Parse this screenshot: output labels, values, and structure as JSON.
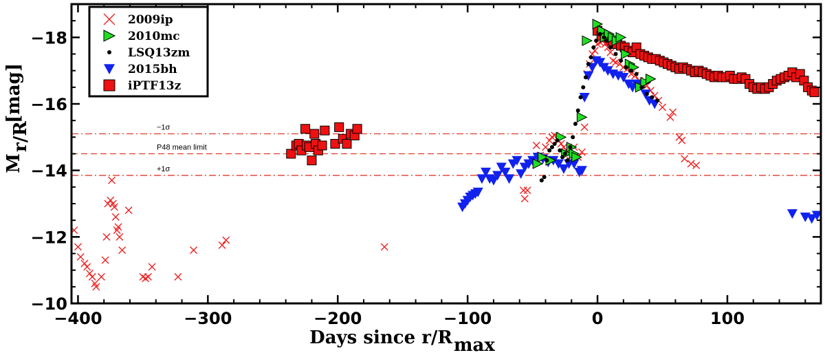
{
  "chart_data": {
    "type": "scatter",
    "xlabel_main": "Days since r/R",
    "xlabel_sub": "max",
    "ylabel_main": "M",
    "ylabel_sub": "r/R",
    "ylabel_unit": "[mag]",
    "xlim": [
      -405,
      172
    ],
    "ylim": [
      -10,
      -19
    ],
    "x_ticks": [
      -400,
      -300,
      -200,
      -100,
      0,
      100
    ],
    "x_tick_labels": [
      "−400",
      "−300",
      "−200",
      "−100",
      "0",
      "100"
    ],
    "y_ticks": [
      -10,
      -12,
      -14,
      -16,
      -18
    ],
    "y_tick_labels": [
      "−10",
      "−12",
      "−14",
      "−16",
      "−18"
    ],
    "legend_position": "top-left",
    "reference_lines": [
      {
        "y": -15.1,
        "label": "−1σ",
        "style": "dash-dot"
      },
      {
        "y": -14.5,
        "label": "P48 mean limit",
        "style": "dashed"
      },
      {
        "y": -13.85,
        "label": "+1σ",
        "style": "dash-dot"
      }
    ],
    "series": [
      {
        "name": "2009ip",
        "marker": "x",
        "color": "#ee2222",
        "points": [
          [
            -403,
            -12.2
          ],
          [
            -400,
            -11.7
          ],
          [
            -398,
            -11.4
          ],
          [
            -395,
            -11.2
          ],
          [
            -393,
            -11.1
          ],
          [
            -391,
            -10.9
          ],
          [
            -389,
            -10.8
          ],
          [
            -387,
            -10.6
          ],
          [
            -386,
            -10.5
          ],
          [
            -382,
            -10.8
          ],
          [
            -379,
            -11.3
          ],
          [
            -378,
            -12.0
          ],
          [
            -377,
            -13.0
          ],
          [
            -375,
            -13.1
          ],
          [
            -374,
            -13.7
          ],
          [
            -373,
            -13.0
          ],
          [
            -372,
            -12.9
          ],
          [
            -371,
            -12.6
          ],
          [
            -370,
            -12.2
          ],
          [
            -369,
            -12.3
          ],
          [
            -368,
            -12.0
          ],
          [
            -366,
            -11.6
          ],
          [
            -361,
            -12.8
          ],
          [
            -350,
            -10.8
          ],
          [
            -348,
            -10.75
          ],
          [
            -346,
            -10.8
          ],
          [
            -343,
            -11.1
          ],
          [
            -323,
            -10.8
          ],
          [
            -311,
            -11.6
          ],
          [
            -289,
            -11.75
          ],
          [
            -286,
            -11.9
          ],
          [
            -164,
            -11.7
          ],
          [
            -57,
            -13.4
          ],
          [
            -56,
            -13.15
          ],
          [
            -54,
            -13.4
          ],
          [
            -47,
            -14.75
          ],
          [
            -44,
            -14.45
          ],
          [
            -40,
            -14.7
          ],
          [
            -37,
            -14.9
          ],
          [
            -35,
            -15.0
          ],
          [
            -33,
            -15.05
          ],
          [
            -30,
            -14.9
          ],
          [
            -28,
            -14.8
          ],
          [
            -26,
            -14.7
          ],
          [
            -24,
            -14.6
          ],
          [
            -21,
            -14.3
          ],
          [
            -18,
            -14.7
          ],
          [
            -15,
            -14.4
          ],
          [
            -12,
            -14.55
          ],
          [
            -10,
            -15.3
          ],
          [
            -8,
            -16.9
          ],
          [
            -6,
            -17.2
          ],
          [
            -4,
            -17.5
          ],
          [
            -2,
            -17.6
          ],
          [
            0,
            -17.8
          ],
          [
            2,
            -17.85
          ],
          [
            4,
            -17.9
          ],
          [
            6,
            -17.8
          ],
          [
            8,
            -17.7
          ],
          [
            10,
            -17.55
          ],
          [
            12,
            -17.3
          ],
          [
            14,
            -17.25
          ],
          [
            17,
            -17.2
          ],
          [
            20,
            -17.1
          ],
          [
            23,
            -17.05
          ],
          [
            26,
            -16.9
          ],
          [
            29,
            -16.85
          ],
          [
            32,
            -16.7
          ],
          [
            35,
            -16.6
          ],
          [
            38,
            -16.55
          ],
          [
            41,
            -16.4
          ],
          [
            44,
            -16.25
          ],
          [
            47,
            -16.1
          ],
          [
            50,
            -15.9
          ],
          [
            56,
            -15.6
          ],
          [
            58,
            -15.75
          ],
          [
            63,
            -15.0
          ],
          [
            65,
            -14.9
          ],
          [
            67,
            -14.35
          ],
          [
            72,
            -14.2
          ],
          [
            76,
            -14.15
          ]
        ]
      },
      {
        "name": "2010mc",
        "marker": "triangle-right",
        "color": "#22dd22",
        "points": [
          [
            -46,
            -14.2
          ],
          [
            -42,
            -14.4
          ],
          [
            -36,
            -14.3
          ],
          [
            -28,
            -15.0
          ],
          [
            -24,
            -14.5
          ],
          [
            -20,
            -14.7
          ],
          [
            -18,
            -14.5
          ],
          [
            -16,
            -14.4
          ],
          [
            -12,
            -15.6
          ],
          [
            -8,
            -17.9
          ],
          [
            0,
            -18.4
          ],
          [
            4,
            -18.2
          ],
          [
            6,
            -18.0
          ],
          [
            9,
            -18.1
          ],
          [
            12,
            -18.0
          ],
          [
            15,
            -17.9
          ],
          [
            18,
            -18.0
          ],
          [
            22,
            -17.5
          ],
          [
            25,
            -17.2
          ],
          [
            28,
            -17.1
          ],
          [
            33,
            -16.5
          ],
          [
            37,
            -16.65
          ],
          [
            41,
            -16.75
          ]
        ]
      },
      {
        "name": "LSQ13zm",
        "marker": "dot",
        "color": "#000000",
        "points": [
          [
            -43,
            -13.7
          ],
          [
            -41,
            -13.8
          ],
          [
            -39,
            -14.3
          ],
          [
            -37,
            -14.6
          ],
          [
            -35,
            -14.7
          ],
          [
            -33,
            -14.8
          ],
          [
            -31,
            -14.9
          ],
          [
            -29,
            -14.6
          ],
          [
            -27,
            -14.4
          ],
          [
            -25,
            -14.5
          ],
          [
            -23,
            -14.3
          ],
          [
            -21,
            -14.7
          ],
          [
            -19,
            -15.0
          ],
          [
            -17,
            -15.4
          ],
          [
            -15,
            -15.8
          ],
          [
            -13,
            -16.2
          ],
          [
            -11,
            -16.5
          ],
          [
            -9,
            -16.8
          ],
          [
            -7,
            -17.2
          ],
          [
            -5,
            -17.4
          ],
          [
            -3,
            -17.7
          ],
          [
            -1,
            -17.9
          ],
          [
            2,
            -18.1
          ],
          [
            5,
            -18.0
          ],
          [
            7,
            -17.9
          ],
          [
            10,
            -17.7
          ],
          [
            14,
            -17.5
          ],
          [
            18,
            -17.3
          ],
          [
            22,
            -17.1
          ],
          [
            26,
            -17.0
          ],
          [
            30,
            -16.9
          ],
          [
            34,
            -16.5
          ],
          [
            38,
            -16.3
          ],
          [
            42,
            -16.2
          ],
          [
            46,
            -16.1
          ]
        ]
      },
      {
        "name": "2015bh",
        "marker": "triangle-down",
        "color": "#1122ee",
        "points": [
          [
            -104,
            -12.9
          ],
          [
            -102,
            -13.0
          ],
          [
            -100,
            -13.1
          ],
          [
            -98,
            -13.2
          ],
          [
            -96,
            -13.25
          ],
          [
            -94,
            -13.3
          ],
          [
            -92,
            -13.35
          ],
          [
            -89,
            -13.75
          ],
          [
            -86,
            -13.95
          ],
          [
            -83,
            -13.75
          ],
          [
            -80,
            -13.7
          ],
          [
            -77,
            -13.85
          ],
          [
            -74,
            -14.1
          ],
          [
            -71,
            -13.95
          ],
          [
            -68,
            -13.75
          ],
          [
            -65,
            -14.2
          ],
          [
            -62,
            -14.3
          ],
          [
            -59,
            -13.9
          ],
          [
            -56,
            -14.1
          ],
          [
            -53,
            -14.2
          ],
          [
            -50,
            -14.3
          ],
          [
            -46,
            -14.4
          ],
          [
            -42,
            -14.35
          ],
          [
            -38,
            -14.25
          ],
          [
            -34,
            -14.3
          ],
          [
            -30,
            -14.2
          ],
          [
            -26,
            -14.05
          ],
          [
            -22,
            -14.2
          ],
          [
            -18,
            -14.2
          ],
          [
            -14,
            -13.95
          ],
          [
            -12,
            -14.0
          ],
          [
            -10,
            -16.2
          ],
          [
            -7,
            -16.85
          ],
          [
            -4,
            -17.1
          ],
          [
            -1,
            -17.3
          ],
          [
            2,
            -17.25
          ],
          [
            5,
            -17.1
          ],
          [
            8,
            -17.0
          ],
          [
            12,
            -16.9
          ],
          [
            16,
            -16.85
          ],
          [
            20,
            -16.8
          ],
          [
            24,
            -16.6
          ],
          [
            27,
            -16.5
          ],
          [
            30,
            -16.6
          ],
          [
            34,
            -16.55
          ],
          [
            37,
            -16.3
          ],
          [
            40,
            -16.1
          ],
          [
            44,
            -16.0
          ],
          [
            150,
            -12.7
          ],
          [
            160,
            -12.6
          ],
          [
            165,
            -12.55
          ],
          [
            169,
            -12.65
          ]
        ]
      },
      {
        "name": "iPTF13z",
        "marker": "square",
        "color": "#ee1111",
        "points": [
          [
            -236,
            -14.5
          ],
          [
            -232,
            -14.75
          ],
          [
            -230,
            -14.8
          ],
          [
            -228,
            -14.6
          ],
          [
            -225,
            -15.25
          ],
          [
            -224,
            -14.75
          ],
          [
            -222,
            -14.7
          ],
          [
            -220,
            -14.3
          ],
          [
            -218,
            -15.1
          ],
          [
            -217,
            -14.8
          ],
          [
            -215,
            -14.6
          ],
          [
            -212,
            -14.75
          ],
          [
            -210,
            -15.2
          ],
          [
            -202,
            -14.8
          ],
          [
            -199,
            -15.3
          ],
          [
            -196,
            -14.95
          ],
          [
            -193,
            -14.8
          ],
          [
            -190,
            -15.1
          ],
          [
            -187,
            -15.05
          ],
          [
            -185,
            -15.25
          ],
          [
            0,
            -18.2
          ],
          [
            3,
            -18.05
          ],
          [
            6,
            -18.0
          ],
          [
            9,
            -17.9
          ],
          [
            12,
            -17.85
          ],
          [
            15,
            -17.8
          ],
          [
            18,
            -17.75
          ],
          [
            21,
            -17.7
          ],
          [
            24,
            -17.6
          ],
          [
            27,
            -17.55
          ],
          [
            30,
            -17.7
          ],
          [
            33,
            -17.5
          ],
          [
            36,
            -17.45
          ],
          [
            39,
            -17.4
          ],
          [
            42,
            -17.35
          ],
          [
            45,
            -17.35
          ],
          [
            48,
            -17.3
          ],
          [
            51,
            -17.25
          ],
          [
            54,
            -17.2
          ],
          [
            57,
            -17.15
          ],
          [
            60,
            -17.1
          ],
          [
            63,
            -17.05
          ],
          [
            66,
            -17.1
          ],
          [
            69,
            -17.05
          ],
          [
            72,
            -17.0
          ],
          [
            75,
            -16.95
          ],
          [
            78,
            -17.0
          ],
          [
            81,
            -16.95
          ],
          [
            84,
            -16.9
          ],
          [
            87,
            -16.85
          ],
          [
            90,
            -16.8
          ],
          [
            93,
            -16.85
          ],
          [
            96,
            -16.8
          ],
          [
            99,
            -16.8
          ],
          [
            102,
            -16.85
          ],
          [
            105,
            -16.75
          ],
          [
            108,
            -16.75
          ],
          [
            111,
            -16.8
          ],
          [
            114,
            -16.75
          ],
          [
            117,
            -16.6
          ],
          [
            120,
            -16.5
          ],
          [
            123,
            -16.45
          ],
          [
            126,
            -16.5
          ],
          [
            129,
            -16.45
          ],
          [
            132,
            -16.5
          ],
          [
            135,
            -16.6
          ],
          [
            138,
            -16.7
          ],
          [
            141,
            -16.75
          ],
          [
            144,
            -16.8
          ],
          [
            147,
            -16.85
          ],
          [
            150,
            -16.95
          ],
          [
            153,
            -16.8
          ],
          [
            156,
            -16.9
          ],
          [
            159,
            -16.7
          ],
          [
            162,
            -16.5
          ],
          [
            165,
            -16.4
          ],
          [
            167,
            -16.35
          ]
        ]
      }
    ]
  }
}
